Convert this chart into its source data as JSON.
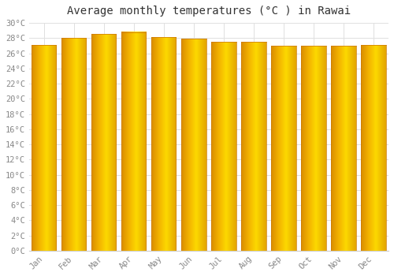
{
  "months": [
    "Jan",
    "Feb",
    "Mar",
    "Apr",
    "May",
    "Jun",
    "Jul",
    "Aug",
    "Sep",
    "Oct",
    "Nov",
    "Dec"
  ],
  "values": [
    27.1,
    28.0,
    28.5,
    28.8,
    28.1,
    27.9,
    27.5,
    27.5,
    27.0,
    27.0,
    27.0,
    27.1
  ],
  "title": "Average monthly temperatures (°C ) in Rawai",
  "ylim": [
    0,
    30
  ],
  "ytick_step": 2,
  "background_color": "#ffffff",
  "grid_color": "#e0e0e0",
  "title_fontsize": 10,
  "tick_fontsize": 7.5,
  "bar_color_center": "#FFB300",
  "bar_color_left": "#FF8C00",
  "bar_color_right": "#FFA500",
  "bar_edge_color": "#CC7000",
  "bar_width": 0.82
}
